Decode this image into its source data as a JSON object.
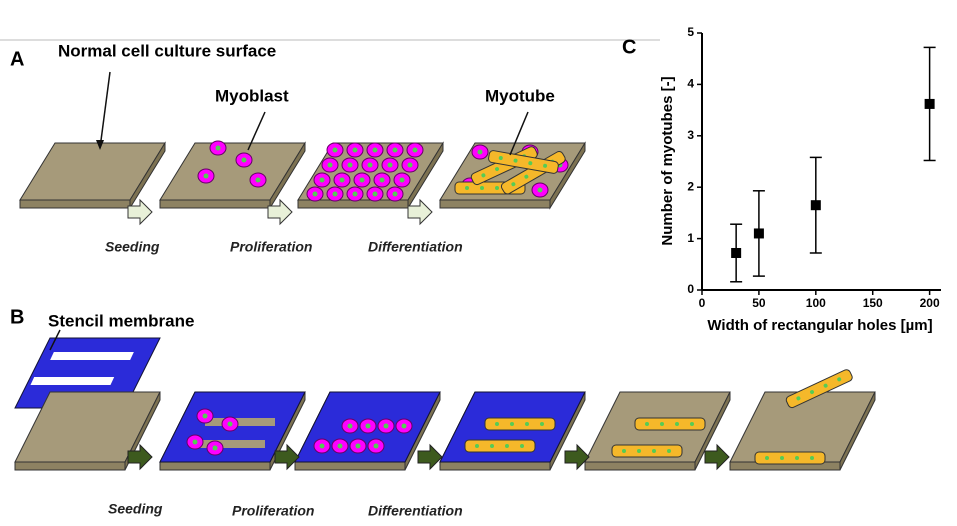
{
  "panel_a": {
    "label": "A",
    "surface_label": "Normal cell culture surface",
    "myoblast_label": "Myoblast",
    "myotube_label": "Myotube",
    "steps": [
      "Seeding",
      "Proliferation",
      "Differentiation"
    ]
  },
  "panel_b": {
    "label": "B",
    "stencil_label": "Stencil membrane",
    "steps": [
      "Seeding",
      "Proliferation",
      "Differentiation"
    ]
  },
  "chart_data": {
    "type": "scatter",
    "panel_label": "C",
    "x_label": "Width of rectangular holes [µm]",
    "y_label": "Number of myotubes [-]",
    "x": [
      30,
      50,
      100,
      200
    ],
    "values": [
      0.72,
      1.1,
      1.65,
      3.62
    ],
    "errors": [
      0.56,
      0.83,
      0.93,
      1.1
    ],
    "color": "#000000",
    "xlim": [
      0,
      210
    ],
    "ylim": [
      0,
      5
    ],
    "xticks": [
      0,
      50,
      100,
      150,
      200
    ],
    "yticks": [
      0,
      1,
      2,
      3,
      4,
      5
    ]
  }
}
